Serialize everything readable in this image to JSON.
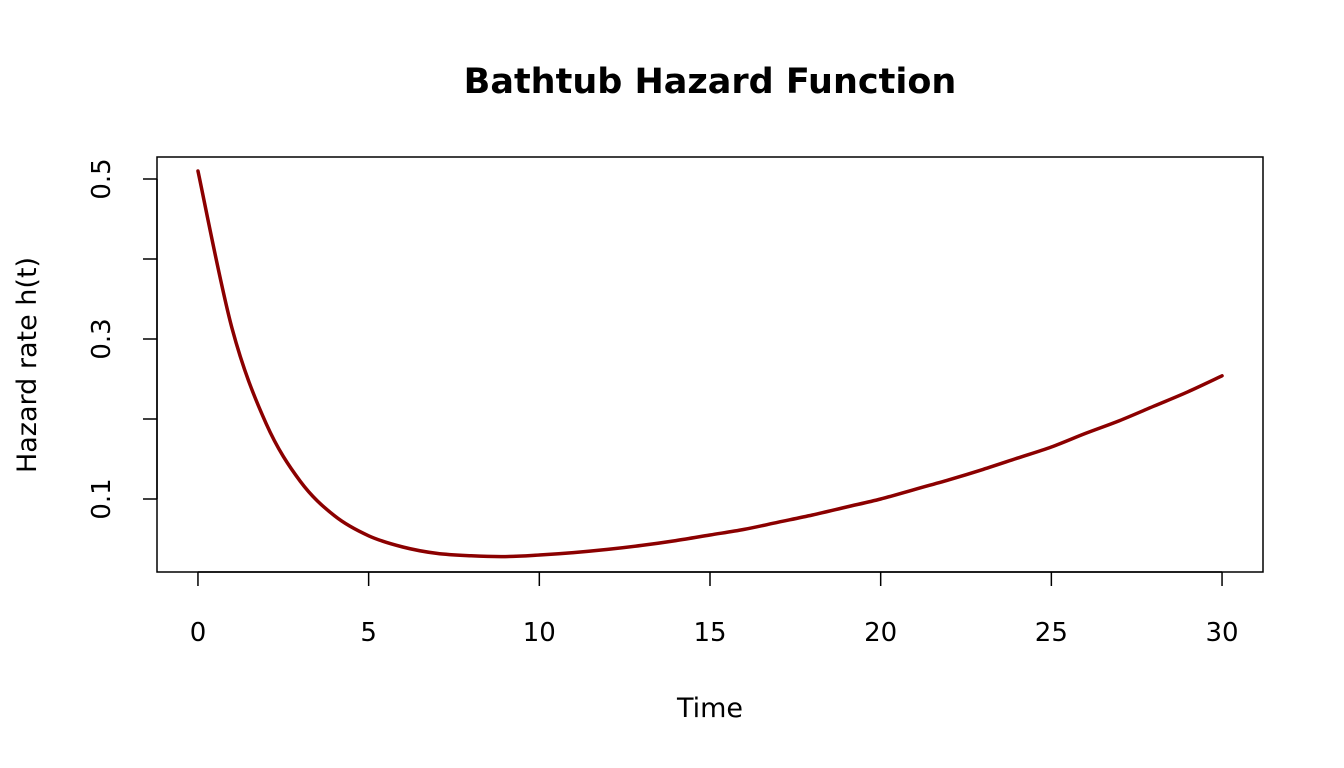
{
  "chart_data": {
    "type": "line",
    "title": "Bathtub Hazard Function",
    "xlabel": "Time",
    "ylabel": "Hazard rate h(t)",
    "xlim": [
      -1.2,
      31.2
    ],
    "ylim": [
      0.00875,
      0.5275
    ],
    "xticks": [
      0,
      5,
      10,
      15,
      20,
      25,
      30
    ],
    "xtick_labels": [
      "0",
      "5",
      "10",
      "15",
      "20",
      "25",
      "30"
    ],
    "yticks": [
      0.1,
      0.2,
      0.3,
      0.4,
      0.5
    ],
    "ytick_labels": [
      "0.1",
      "",
      "0.3",
      "",
      "0.5"
    ],
    "grid": false,
    "series": [
      {
        "color": "#8B0000",
        "x": [
          0,
          1,
          2,
          3,
          4,
          5,
          6,
          7,
          8,
          9,
          10,
          11,
          12,
          13,
          14,
          15,
          16,
          17,
          18,
          19,
          20,
          21,
          22,
          23,
          24,
          25,
          26,
          27,
          28,
          29,
          30
        ],
        "y": [
          0.51,
          0.313,
          0.194,
          0.122,
          0.079,
          0.054,
          0.04,
          0.032,
          0.029,
          0.028,
          0.03,
          0.033,
          0.037,
          0.042,
          0.048,
          0.055,
          0.062,
          0.071,
          0.08,
          0.09,
          0.1,
          0.112,
          0.124,
          0.137,
          0.151,
          0.165,
          0.182,
          0.198,
          0.216,
          0.234,
          0.254
        ]
      }
    ]
  }
}
